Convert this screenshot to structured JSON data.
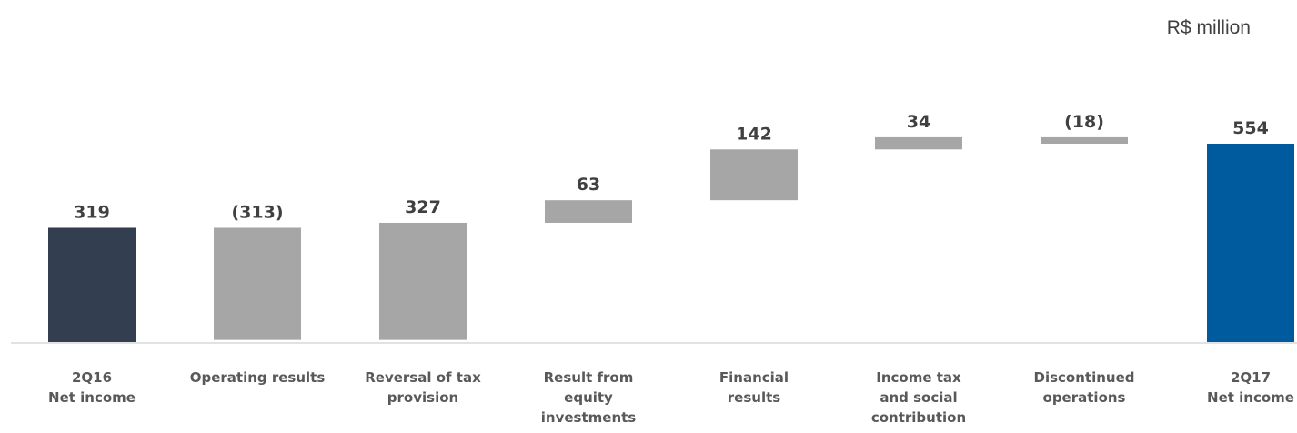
{
  "chart_data": {
    "type": "bar",
    "subtype": "waterfall",
    "unit_label": "R$ million",
    "categories": [
      [
        "2Q16",
        "Net income"
      ],
      [
        "Operating results"
      ],
      [
        "Reversal of tax",
        "provision"
      ],
      [
        "Result from",
        "equity",
        "investments"
      ],
      [
        "Financial",
        "results"
      ],
      [
        "Income tax",
        "and social",
        "contribution"
      ],
      [
        "Discontinued",
        "operations"
      ],
      [
        "2Q17",
        "Net income"
      ]
    ],
    "values": [
      319,
      -313,
      327,
      63,
      142,
      34,
      -18,
      554
    ],
    "value_labels": [
      "319",
      "(313)",
      "327",
      "63",
      "142",
      "34",
      "(18)",
      "554"
    ],
    "bar_kinds": [
      "total",
      "delta",
      "delta",
      "delta",
      "delta",
      "delta",
      "delta",
      "total"
    ],
    "colors": {
      "start_total": "#333F50",
      "delta": "#A6A6A6",
      "end_total": "#005A9E",
      "axis": "#D9D9D9",
      "label": "#404040",
      "category_label": "#595959"
    },
    "grid": false,
    "legend": "none"
  }
}
